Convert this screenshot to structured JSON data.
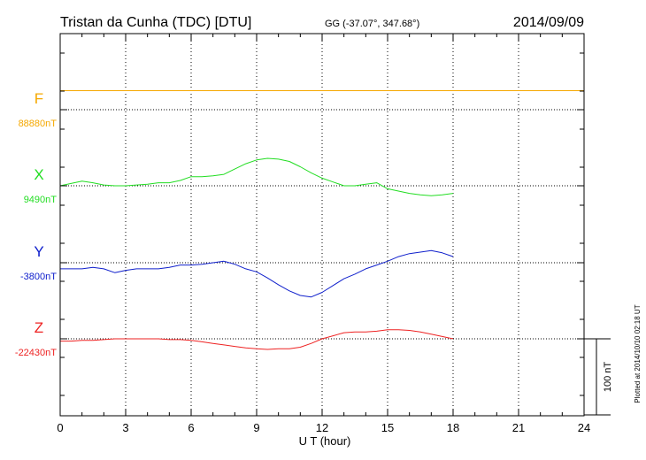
{
  "header": {
    "title": "Tristan da Cunha (TDC)  [DTU]",
    "coords": "GG (-37.07°, 347.68°)",
    "date": "2014/09/09"
  },
  "footer": {
    "plotted_note": "Plotted at 2014/10/10 02:18 UT"
  },
  "chart_data": {
    "type": "line",
    "title": "Tristan da Cunha (TDC)  [DTU]",
    "xlabel": "U T (hour)",
    "ylabel": "",
    "xlim": [
      0,
      24
    ],
    "xticks": [
      "0",
      "3",
      "6",
      "9",
      "12",
      "15",
      "18",
      "21",
      "24"
    ],
    "grid": true,
    "scale_bar": {
      "label": "100 nT",
      "nT": 100
    },
    "series": [
      {
        "name": "F",
        "baseline_label": "88880nT",
        "baseline_nT": 88880,
        "color": "#f5a800",
        "x": [
          0,
          1,
          2,
          3,
          4,
          5,
          6,
          7,
          8,
          9,
          10,
          11,
          12,
          13,
          14,
          15,
          16,
          17,
          18,
          19,
          20,
          21,
          22,
          24
        ],
        "values": [
          88905,
          88905,
          88905,
          88905,
          88905,
          88905,
          88905,
          88905,
          88905,
          88905,
          88905,
          88905,
          88905,
          88905,
          88905,
          88905,
          88905,
          88905,
          88905,
          88905,
          88905,
          88905,
          88905,
          88905
        ]
      },
      {
        "name": "X",
        "baseline_label": "9490nT",
        "baseline_nT": 9490,
        "color": "#22dd22",
        "x": [
          0,
          0.5,
          1,
          1.5,
          2,
          2.5,
          3,
          3.5,
          4,
          4.5,
          5,
          5.5,
          6,
          6.5,
          7,
          7.5,
          8,
          8.5,
          9,
          9.5,
          10,
          10.5,
          11,
          11.5,
          12,
          12.5,
          13,
          13.5,
          14,
          14.5,
          15,
          15.5,
          16,
          16.5,
          17,
          17.5,
          18
        ],
        "values": [
          9490,
          9493,
          9496,
          9494,
          9491,
          9490,
          9490,
          9491,
          9492,
          9494,
          9494,
          9497,
          9502,
          9502,
          9503,
          9505,
          9512,
          9519,
          9524,
          9526,
          9525,
          9522,
          9515,
          9507,
          9500,
          9495,
          9490,
          9490,
          9492,
          9494,
          9486,
          9483,
          9480,
          9478,
          9477,
          9478,
          9480
        ]
      },
      {
        "name": "Y",
        "baseline_label": "-3800nT",
        "baseline_nT": -3800,
        "color": "#1020cc",
        "x": [
          0,
          0.5,
          1,
          1.5,
          2,
          2.5,
          3,
          3.5,
          4,
          4.5,
          5,
          5.5,
          6,
          6.5,
          7,
          7.5,
          8,
          8.5,
          9,
          9.5,
          10,
          10.5,
          11,
          11.5,
          12,
          12.5,
          13,
          13.5,
          14,
          14.5,
          15,
          15.5,
          16,
          16.5,
          17,
          17.5,
          18
        ],
        "values": [
          -3808,
          -3808,
          -3808,
          -3806,
          -3808,
          -3813,
          -3810,
          -3808,
          -3808,
          -3808,
          -3806,
          -3803,
          -3803,
          -3802,
          -3800,
          -3798,
          -3802,
          -3808,
          -3812,
          -3820,
          -3829,
          -3837,
          -3843,
          -3845,
          -3839,
          -3830,
          -3821,
          -3815,
          -3808,
          -3803,
          -3798,
          -3792,
          -3788,
          -3786,
          -3784,
          -3787,
          -3792
        ]
      },
      {
        "name": "Z",
        "baseline_label": "-22430nT",
        "baseline_nT": -22430,
        "color": "#ee2222",
        "x": [
          0,
          0.5,
          1,
          1.5,
          2,
          2.5,
          3,
          3.5,
          4,
          4.5,
          5,
          5.5,
          6,
          6.5,
          7,
          7.5,
          8,
          8.5,
          9,
          9.5,
          10,
          10.5,
          11,
          11.5,
          12,
          12.5,
          13,
          13.5,
          14,
          14.5,
          15,
          15.5,
          16,
          16.5,
          17,
          17.5,
          18
        ],
        "values": [
          -22433,
          -22433,
          -22432,
          -22432,
          -22431,
          -22430,
          -22430,
          -22430,
          -22430,
          -22430,
          -22431,
          -22431,
          -22432,
          -22434,
          -22436,
          -22438,
          -22440,
          -22442,
          -22443,
          -22444,
          -22443,
          -22443,
          -22441,
          -22436,
          -22430,
          -22426,
          -22422,
          -22421,
          -22421,
          -22420,
          -22418,
          -22418,
          -22419,
          -22421,
          -22424,
          -22427,
          -22430
        ]
      }
    ]
  }
}
